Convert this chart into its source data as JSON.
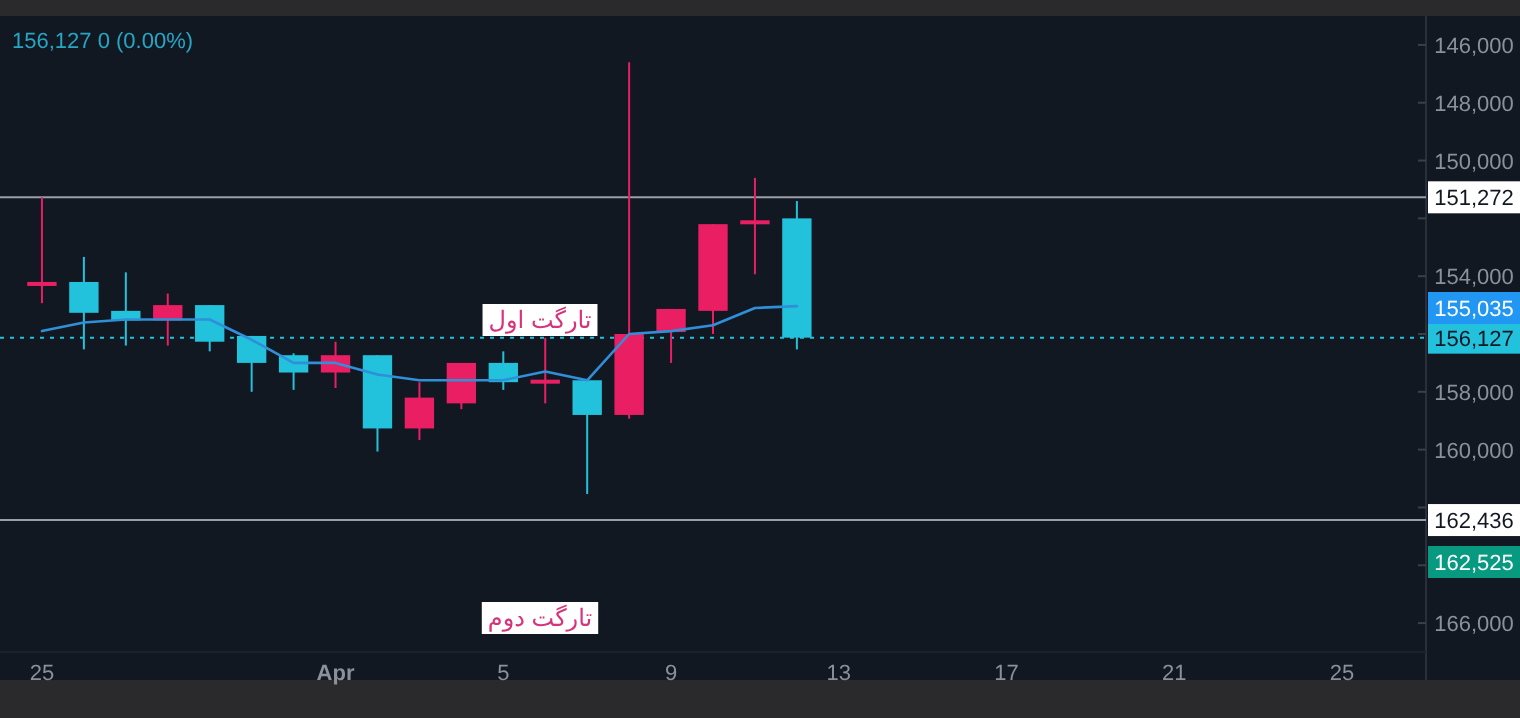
{
  "chart_data": {
    "type": "candlestick",
    "x": [
      "--03-25",
      "--03-26",
      "--03-27",
      "--03-28",
      "--03-29",
      "--03-30",
      "--03-31",
      "--04-01",
      "--04-02",
      "--04-03",
      "--04-04",
      "--04-05",
      "--04-06",
      "--04-07",
      "--04-08",
      "--04-09",
      "--04-10",
      "--04-11",
      "--04-12"
    ],
    "ohlc": [
      [
        154250,
        154933,
        151267,
        154200
      ],
      [
        154200,
        156533,
        153333,
        155267
      ],
      [
        155200,
        156400,
        153867,
        155533
      ],
      [
        155533,
        156400,
        154600,
        155000
      ],
      [
        155000,
        156600,
        155000,
        156267
      ],
      [
        156067,
        158000,
        156067,
        157000
      ],
      [
        156733,
        157933,
        156667,
        157333
      ],
      [
        157333,
        157867,
        156267,
        156733
      ],
      [
        156733,
        160067,
        156733,
        159267
      ],
      [
        159267,
        159667,
        157667,
        158200
      ],
      [
        158400,
        158600,
        157000,
        157000
      ],
      [
        157000,
        157933,
        156600,
        157667
      ],
      [
        157620,
        158400,
        156133,
        157580
      ],
      [
        157600,
        161533,
        157600,
        158800
      ],
      [
        158800,
        158933,
        146600,
        156000
      ],
      [
        155933,
        157000,
        155133,
        155133
      ],
      [
        155200,
        156000,
        152200,
        152200
      ],
      [
        152133,
        153933,
        150600,
        152067
      ],
      [
        152000,
        156533,
        151400,
        156127
      ]
    ],
    "colors": [
      "#e91e63",
      "#22c1dc",
      "#22c1dc",
      "#e91e63",
      "#22c1dc",
      "#22c1dc",
      "#22c1dc",
      "#e91e63",
      "#22c1dc",
      "#e91e63",
      "#e91e63",
      "#22c1dc",
      "#e91e63",
      "#22c1dc",
      "#e91e63",
      "#e91e63",
      "#e91e63",
      "#e91e63",
      "#22c1dc"
    ],
    "series": [
      {
        "type": "line",
        "color": "#2f8fd8",
        "values": [
          155900,
          155600,
          155500,
          155500,
          155500,
          156200,
          157000,
          157000,
          157400,
          157600,
          157600,
          157600,
          157300,
          157600,
          156000,
          155900,
          155700,
          155100,
          155035
        ]
      }
    ],
    "xlim": [
      "--03-24",
      "--04-27"
    ],
    "xticks": [
      {
        "value": "--03-25",
        "label": "25"
      },
      {
        "value": "--04-01",
        "label": "Apr"
      },
      {
        "value": "--04-05",
        "label": "5"
      },
      {
        "value": "--04-09",
        "label": "9"
      },
      {
        "value": "--04-13",
        "label": "13"
      },
      {
        "value": "--04-17",
        "label": "17"
      },
      {
        "value": "--04-21",
        "label": "21"
      },
      {
        "value": "--04-25",
        "label": "25"
      }
    ],
    "ylim": [
      167000,
      145000
    ],
    "yticks": [
      {
        "value": 146000,
        "label": "146,000"
      },
      {
        "value": 148000,
        "label": "148,000"
      },
      {
        "value": 150000,
        "label": "150,000"
      },
      {
        "value": 152000,
        "label": null
      },
      {
        "value": 154000,
        "label": "154,000"
      },
      {
        "value": 156000,
        "label": null
      },
      {
        "value": 158000,
        "label": "158,000"
      },
      {
        "value": 160000,
        "label": "160,000"
      },
      {
        "value": 162000,
        "label": null
      },
      {
        "value": 164000,
        "label": null
      },
      {
        "value": 166000,
        "label": "166,000"
      }
    ],
    "ref_lines": [
      {
        "axis": "y",
        "value": 151272,
        "label": "151,272",
        "color": "#9a9ea6",
        "line_style": "solid"
      },
      {
        "axis": "y",
        "value": 156127,
        "label": "156,127",
        "color": "#22c1dc",
        "line_style": "dotted"
      },
      {
        "axis": "y",
        "value": 162436,
        "label": "162,436",
        "color": "#9a9ea6",
        "line_style": "solid"
      }
    ],
    "annotations": [
      "156,127  0 (0.00%)",
      "155,035",
      "162,525",
      "تارگت اول",
      "تارگت دوم"
    ]
  }
}
